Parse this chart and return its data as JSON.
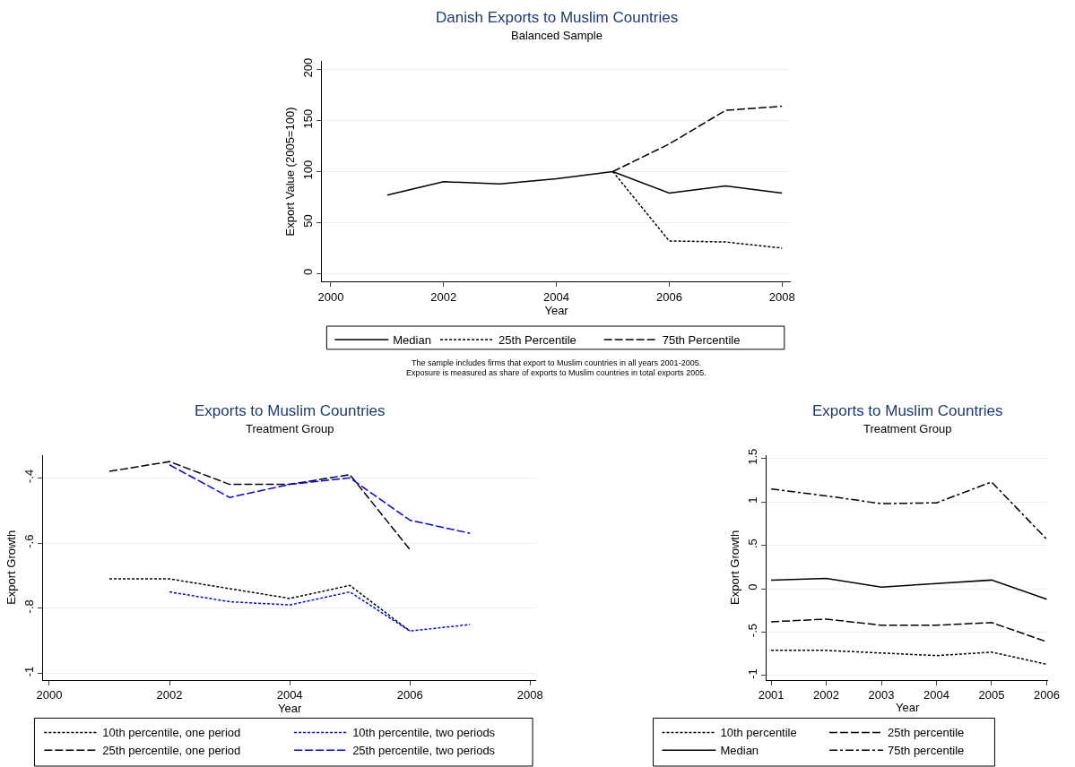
{
  "chart_data": [
    {
      "type": "line",
      "title": "Danish Exports to Muslim Countries",
      "subtitle": "Balanced Sample",
      "xlabel": "Year",
      "ylabel": "Export Value (2005=100)",
      "xlim": [
        1999.85,
        2008.15
      ],
      "xticks": [
        2000,
        2002,
        2004,
        2006,
        2008
      ],
      "ylim": [
        -8,
        208
      ],
      "yticks": [
        0,
        50,
        100,
        150,
        200
      ],
      "grid": "y",
      "legend": "bottom",
      "series": [
        {
          "name": "Median",
          "color": "#000000",
          "line_style": "solid",
          "x": [
            2001,
            2002,
            2003,
            2004,
            2005,
            2006,
            2007,
            2008
          ],
          "values": [
            77,
            90,
            88,
            93,
            100,
            79,
            86,
            79
          ]
        },
        {
          "name": "25th Percentile",
          "color": "#000000",
          "line_style": "dotted",
          "x": [
            2005,
            2006,
            2007,
            2008
          ],
          "values": [
            100,
            32,
            31,
            25
          ]
        },
        {
          "name": "75th Percentile",
          "color": "#000000",
          "line_style": "dashed",
          "x": [
            2005,
            2006,
            2007,
            2008
          ],
          "values": [
            100,
            127,
            160,
            164
          ]
        }
      ],
      "annotations": [
        "The sample includes firms that export to Muslim countries in all years 2001-2005.",
        "Exposure is measured as share of exports to Muslim countries in total exports 2005."
      ]
    },
    {
      "type": "line",
      "title": "Exports to Muslim Countries",
      "subtitle": "Treatment Group",
      "xlabel": "Year",
      "ylabel": "Export Growth",
      "xlim": [
        1999.9,
        2008.1
      ],
      "xticks": [
        2000,
        2002,
        2004,
        2006,
        2008
      ],
      "ylim": [
        -1.02,
        -0.33
      ],
      "yticks": [
        {
          "value": -1,
          "label": "-1"
        },
        {
          "value": -0.8,
          "label": "-.8"
        },
        {
          "value": -0.6,
          "label": "-.6"
        },
        {
          "value": -0.4,
          "label": "-.4"
        }
      ],
      "grid": "y",
      "legend": "bottom",
      "series": [
        {
          "name": "10th percentile, one period",
          "color": "#000000",
          "line_style": "dotted",
          "x": [
            2001,
            2002,
            2003,
            2004,
            2005,
            2006
          ],
          "values": [
            -0.71,
            -0.71,
            -0.74,
            -0.77,
            -0.73,
            -0.87
          ]
        },
        {
          "name": "10th percentile, two periods",
          "color": "#0000ff",
          "line_style": "dotted",
          "x": [
            2002,
            2003,
            2004,
            2005,
            2006,
            2007
          ],
          "values": [
            -0.75,
            -0.78,
            -0.79,
            -0.75,
            -0.87,
            -0.85
          ]
        },
        {
          "name": "25th percentile, one period",
          "color": "#000000",
          "line_style": "dashed",
          "x": [
            2001,
            2002,
            2003,
            2004,
            2005,
            2006
          ],
          "values": [
            -0.38,
            -0.35,
            -0.42,
            -0.42,
            -0.39,
            -0.62
          ]
        },
        {
          "name": "25th percentile, two periods",
          "color": "#0000ff",
          "line_style": "dashed",
          "x": [
            2002,
            2003,
            2004,
            2005,
            2006,
            2007
          ],
          "values": [
            -0.36,
            -0.46,
            -0.42,
            -0.4,
            -0.53,
            -0.57
          ]
        }
      ]
    },
    {
      "type": "line",
      "title": "Exports to Muslim Countries",
      "subtitle": "Treatment Group",
      "xlabel": "Year",
      "ylabel": "Export Growth",
      "xlim": [
        2000.92,
        2006.03
      ],
      "xticks": [
        2001,
        2002,
        2003,
        2004,
        2005,
        2006
      ],
      "ylim": [
        -1.05,
        1.54
      ],
      "yticks": [
        {
          "value": -1,
          "label": "-1"
        },
        {
          "value": -0.5,
          "label": "-.5"
        },
        0,
        {
          "value": 0.5,
          "label": ".5"
        },
        1,
        1.5
      ],
      "grid": "y",
      "legend": "bottom",
      "series": [
        {
          "name": "10th percentile",
          "color": "#000000",
          "line_style": "dotted",
          "x": [
            2001,
            2002,
            2003,
            2004,
            2005,
            2006
          ],
          "values": [
            -0.71,
            -0.71,
            -0.74,
            -0.77,
            -0.73,
            -0.87
          ]
        },
        {
          "name": "25th percentile",
          "color": "#000000",
          "line_style": "dashed",
          "x": [
            2001,
            2002,
            2003,
            2004,
            2005,
            2006
          ],
          "values": [
            -0.38,
            -0.35,
            -0.42,
            -0.42,
            -0.39,
            -0.61
          ]
        },
        {
          "name": "Median",
          "color": "#000000",
          "line_style": "solid",
          "x": [
            2001,
            2002,
            2003,
            2004,
            2005,
            2006
          ],
          "values": [
            0.1,
            0.12,
            0.02,
            0.06,
            0.1,
            -0.12
          ]
        },
        {
          "name": "75th percentile",
          "color": "#000000",
          "line_style": "dashdot",
          "x": [
            2001,
            2002,
            2003,
            2004,
            2005,
            2006
          ],
          "values": [
            1.15,
            1.07,
            0.98,
            0.99,
            1.23,
            0.57
          ]
        }
      ]
    }
  ]
}
